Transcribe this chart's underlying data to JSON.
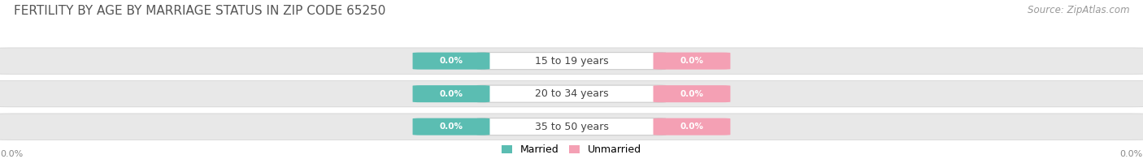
{
  "title": "FERTILITY BY AGE BY MARRIAGE STATUS IN ZIP CODE 65250",
  "source": "Source: ZipAtlas.com",
  "categories": [
    "15 to 19 years",
    "20 to 34 years",
    "35 to 50 years"
  ],
  "married_values": [
    0.0,
    0.0,
    0.0
  ],
  "unmarried_values": [
    0.0,
    0.0,
    0.0
  ],
  "married_color": "#5bbdb2",
  "unmarried_color": "#f4a0b4",
  "title_fontsize": 11,
  "source_fontsize": 8.5,
  "label_fontsize": 7.5,
  "category_fontsize": 9,
  "legend_fontsize": 9,
  "background_color": "#ffffff",
  "row_fill": "#e8e8e8",
  "row_edge": "#d0d0d0",
  "axis_label_color": "#888888",
  "title_color": "#555555",
  "source_color": "#999999",
  "cat_text_color": "#444444",
  "val_text_color": "#ffffff"
}
